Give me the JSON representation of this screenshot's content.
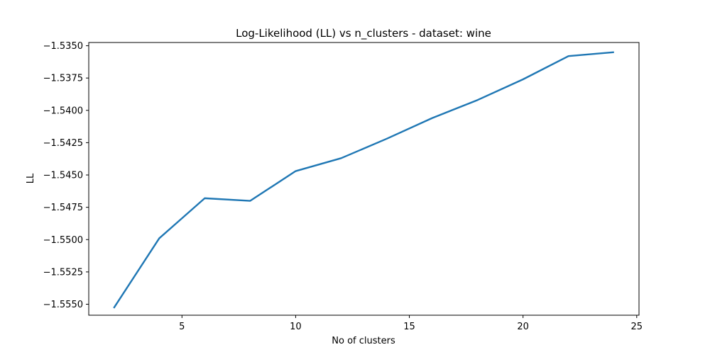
{
  "chart_data": {
    "type": "line",
    "title": "Log-Likelihood (LL) vs n_clusters - dataset: wine",
    "xlabel": "No of clusters",
    "ylabel": "LL",
    "xlim": [
      0.9,
      25.1
    ],
    "ylim": [
      -1.55585,
      -1.53475
    ],
    "xticks": [
      5,
      10,
      15,
      20,
      25
    ],
    "yticks": [
      -1.535,
      -1.5375,
      -1.54,
      -1.5425,
      -1.545,
      -1.5475,
      -1.55,
      -1.5525,
      -1.555
    ],
    "xtick_labels": [
      "5",
      "10",
      "15",
      "20",
      "25"
    ],
    "ytick_labels": [
      "−1.5350",
      "−1.5375",
      "−1.5400",
      "−1.5425",
      "−1.5450",
      "−1.5475",
      "−1.5500",
      "−1.5525",
      "−1.5550"
    ],
    "grid": false,
    "series": [
      {
        "color": "#1f77b4",
        "x": [
          2,
          4,
          6,
          8,
          10,
          12,
          14,
          16,
          18,
          20,
          22,
          24
        ],
        "y": [
          -1.5553,
          -1.5499,
          -1.5468,
          -1.547,
          -1.5447,
          -1.5437,
          -1.5422,
          -1.5406,
          -1.5392,
          -1.5376,
          -1.5358,
          -1.5355
        ]
      }
    ]
  }
}
